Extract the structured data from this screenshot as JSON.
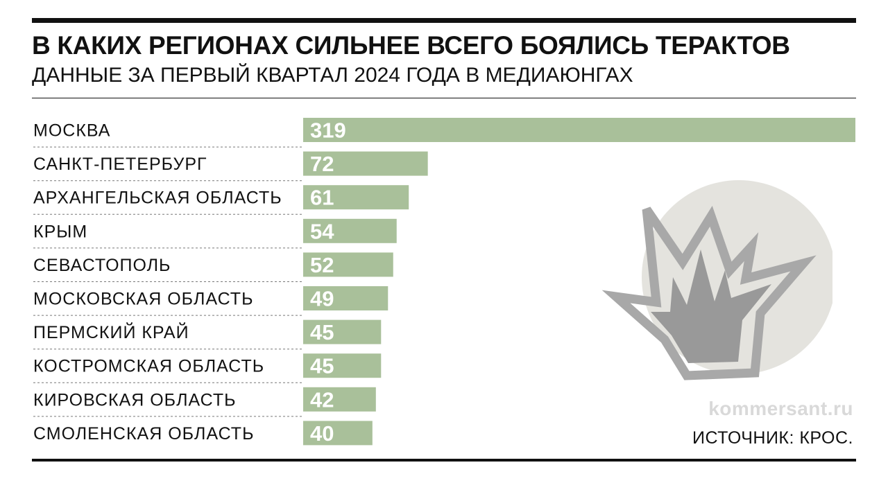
{
  "header": {
    "title": "В КАКИХ РЕГИОНАХ СИЛЬНЕЕ ВСЕГО БОЯЛИСЬ ТЕРАКТОВ",
    "subtitle": "ДАННЫЕ ЗА ПЕРВЫЙ КВАРТАЛ 2024 ГОДА В МЕДИАЮНГАХ"
  },
  "footer": {
    "watermark": "kommersant.ru",
    "source": "ИСТОЧНИК: КРОС."
  },
  "colors": {
    "bar": "#a9c09a",
    "bar_label": "#ffffff",
    "text": "#111111",
    "circle": "#e4e3de",
    "explosion_outline": "#a8a8a8",
    "explosion_fill": "#999999"
  },
  "illustration": {
    "icon": "explosion-icon"
  },
  "chart_data": {
    "type": "bar",
    "orientation": "horizontal",
    "categories": [
      "МОСКВА",
      "САНКТ-ПЕТЕРБУРГ",
      "АРХАНГЕЛЬСКАЯ ОБЛАСТЬ",
      "КРЫМ",
      "СЕВАСТОПОЛЬ",
      "МОСКОВСКАЯ ОБЛАСТЬ",
      "ПЕРМСКИЙ КРАЙ",
      "КОСТРОМСКАЯ ОБЛАСТЬ",
      "КИРОВСКАЯ ОБЛАСТЬ",
      "СМОЛЕНСКАЯ ОБЛАСТЬ"
    ],
    "values": [
      319,
      72,
      61,
      54,
      52,
      49,
      45,
      45,
      42,
      40
    ],
    "xlim": [
      0,
      319
    ],
    "grid": false,
    "legend": "none"
  }
}
